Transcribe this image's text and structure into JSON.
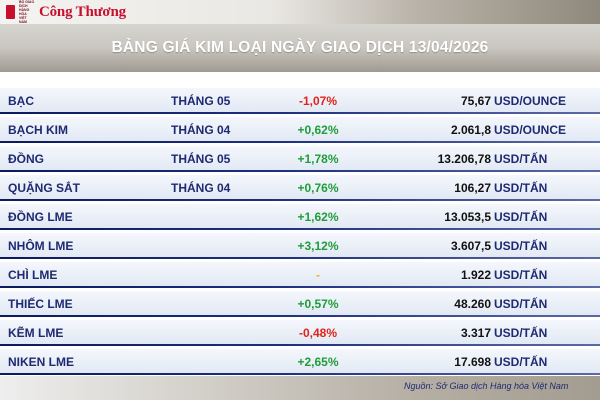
{
  "logo": {
    "text": "Công Thương",
    "small_text": "BỘ GIAO DỊCH HÀNG HÓA VIỆT NAM"
  },
  "header": {
    "title": "BẢNG GIÁ KIM LOẠI NGÀY GIAO DỊCH 13/04/2026"
  },
  "colors": {
    "positive": "#1f9d3a",
    "negative": "#e0231b",
    "neutral": "#f2b600",
    "text": "#1e2a72",
    "price": "#111111",
    "brand": "#c8102e"
  },
  "rows": [
    {
      "name": "BẠC",
      "month": "THÁNG 05",
      "change": "-1,07%",
      "trend": "negative",
      "price": "75,67",
      "unit": "USD/OUNCE"
    },
    {
      "name": "BẠCH KIM",
      "month": "THÁNG 04",
      "change": "+0,62%",
      "trend": "positive",
      "price": "2.061,8",
      "unit": "USD/OUNCE"
    },
    {
      "name": "ĐỒNG",
      "month": "THÁNG 05",
      "change": "+1,78%",
      "trend": "positive",
      "price": "13.206,78",
      "unit": "USD/TẤN"
    },
    {
      "name": "QUẶNG SẮT",
      "month": "THÁNG 04",
      "change": "+0,76%",
      "trend": "positive",
      "price": "106,27",
      "unit": "USD/TẤN"
    },
    {
      "name": "ĐỒNG LME",
      "month": "",
      "change": "+1,62%",
      "trend": "positive",
      "price": "13.053,5",
      "unit": "USD/TẤN"
    },
    {
      "name": "NHÔM LME",
      "month": "",
      "change": "+3,12%",
      "trend": "positive",
      "price": "3.607,5",
      "unit": "USD/TẤN"
    },
    {
      "name": "CHÌ LME",
      "month": "",
      "change": "-",
      "trend": "neutral",
      "price": "1.922",
      "unit": "USD/TẤN"
    },
    {
      "name": "THIẾC LME",
      "month": "",
      "change": "+0,57%",
      "trend": "positive",
      "price": "48.260",
      "unit": "USD/TẤN"
    },
    {
      "name": "KẼM LME",
      "month": "",
      "change": "-0,48%",
      "trend": "negative",
      "price": "3.317",
      "unit": "USD/TẤN"
    },
    {
      "name": "NIKEN LME",
      "month": "",
      "change": "+2,65%",
      "trend": "positive",
      "price": "17.698",
      "unit": "USD/TẤN"
    }
  ],
  "source": {
    "text": "Nguồn: Sở Giao dịch Hàng hóa Việt Nam"
  }
}
